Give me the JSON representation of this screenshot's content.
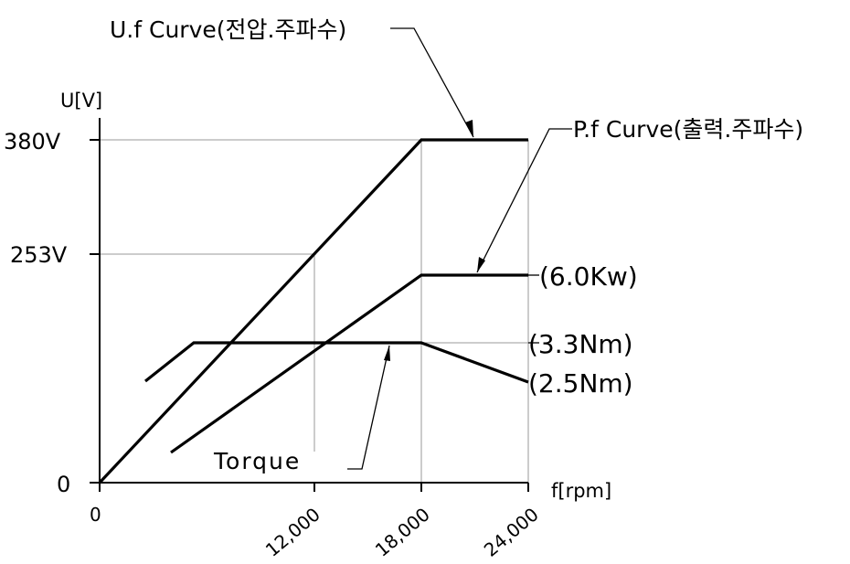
{
  "labels": {
    "uf_curve": "U.f Curve(전압.주파수)",
    "pf_curve": "P.f Curve(출력.주파수)",
    "torque": "Torque",
    "y_axis": "U[V]",
    "x_axis": "f[rpm]",
    "power": "(6.0Kw)",
    "torque_max": "(3.3Nm)",
    "torque_end": "(2.5Nm)"
  },
  "y_ticks": [
    "380V",
    "253V",
    "0"
  ],
  "x_ticks": [
    "0",
    "12,000",
    "18,000",
    "24,000"
  ],
  "chart_data": {
    "type": "line",
    "x_unit": "rpm",
    "y_unit": "V",
    "series": [
      {
        "points": [
          [
            0,
            0
          ],
          [
            18000,
            380
          ],
          [
            24000,
            380
          ]
        ]
      },
      {
        "points": [
          [
            4000,
            35
          ],
          [
            18000,
            230
          ],
          [
            24000,
            230
          ]
        ]
      },
      {
        "points": [
          [
            2500,
            115
          ],
          [
            5200,
            156
          ],
          [
            18000,
            156
          ],
          [
            24000,
            112
          ]
        ]
      }
    ]
  }
}
